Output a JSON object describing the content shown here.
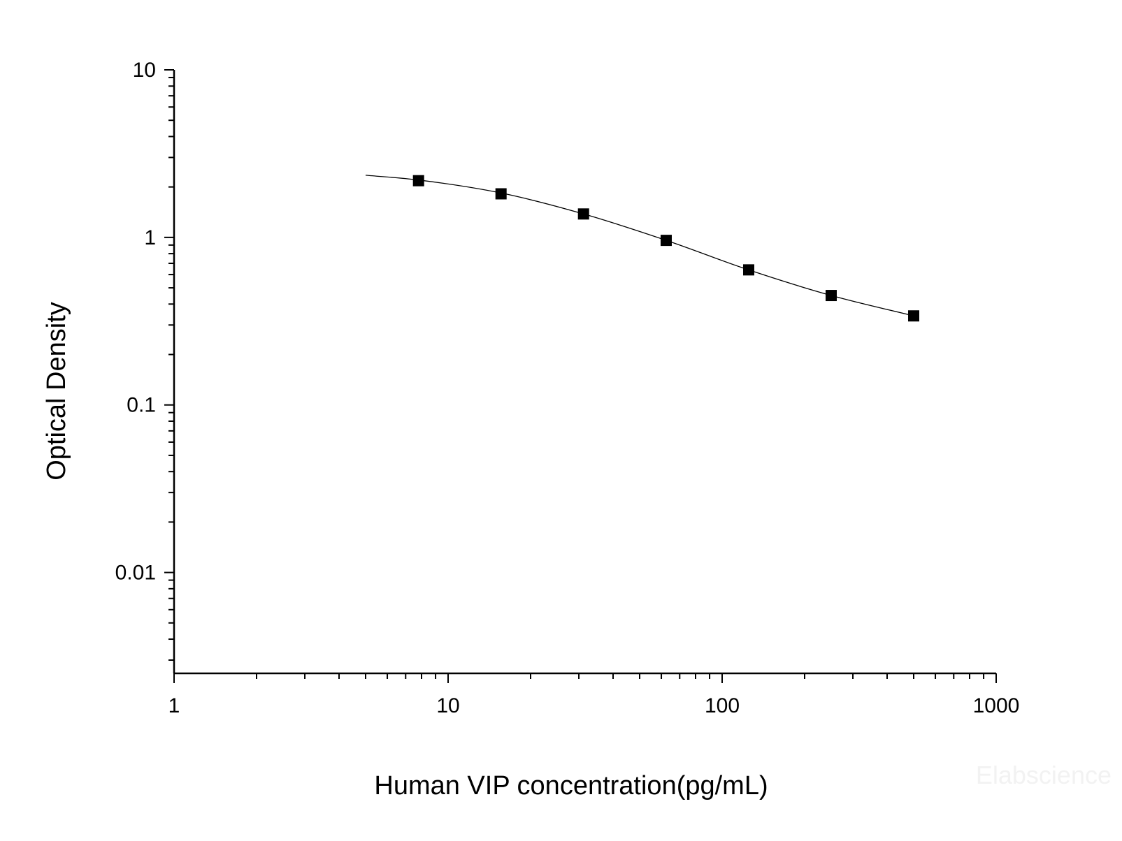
{
  "chart_data": {
    "type": "scatter",
    "title": "",
    "xlabel": "Human VIP concentration(pg/mL)",
    "ylabel": "Optical Density",
    "x_scale": "log",
    "y_scale": "log",
    "xlim": [
      1,
      1000
    ],
    "ylim": [
      0.0025,
      10
    ],
    "x_ticks": [
      "1",
      "10",
      "100",
      "1000"
    ],
    "y_ticks": [
      "0.01",
      "0.1",
      "1",
      "10"
    ],
    "grid": false,
    "legend": "none",
    "marker": "square",
    "color": "#000000",
    "series": [
      {
        "x": [
          7.8,
          15.6,
          31.2,
          62.5,
          125,
          250,
          500
        ],
        "y": [
          2.18,
          1.82,
          1.38,
          0.96,
          0.64,
          0.45,
          0.34
        ]
      }
    ],
    "fit_curve": {
      "x": [
        5,
        7.8,
        15.6,
        31.2,
        62.5,
        125,
        250,
        500
      ],
      "y": [
        2.35,
        2.2,
        1.84,
        1.38,
        0.96,
        0.64,
        0.45,
        0.34
      ]
    }
  },
  "watermark": "Elabscience"
}
